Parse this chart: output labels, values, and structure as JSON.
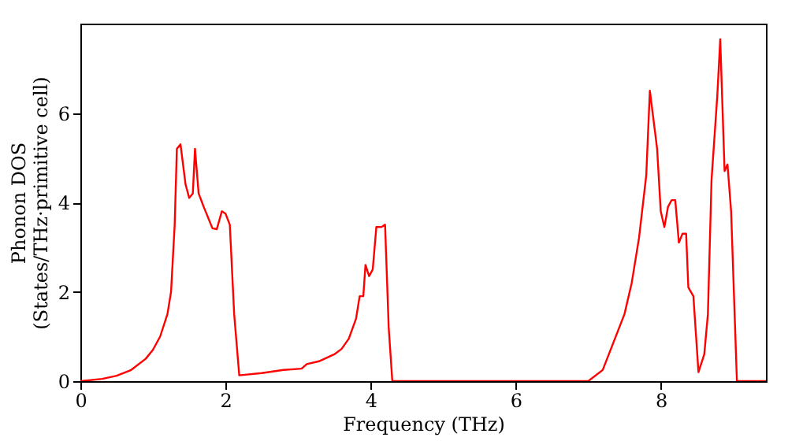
{
  "chart_data": {
    "type": "line",
    "xlabel": "Frequency (THz)",
    "ylabel": "Phonon DOS\n(States/THz·primitive cell)",
    "xlim": [
      0,
      9.45
    ],
    "ylim": [
      0,
      8
    ],
    "xticks": [
      0,
      2,
      4,
      6,
      8
    ],
    "yticks": [
      0,
      2,
      4,
      6
    ],
    "grid": false,
    "marker": "none",
    "line_style": "solid",
    "series": [
      {
        "color": "#ff0000",
        "x": [
          0,
          0.3,
          0.5,
          0.7,
          0.9,
          1.0,
          1.1,
          1.2,
          1.25,
          1.3,
          1.33,
          1.38,
          1.45,
          1.5,
          1.55,
          1.58,
          1.63,
          1.7,
          1.82,
          1.88,
          1.95,
          2.0,
          2.06,
          2.12,
          2.19,
          2.5,
          2.8,
          3.05,
          3.12,
          3.3,
          3.5,
          3.6,
          3.7,
          3.8,
          3.85,
          3.9,
          3.93,
          3.98,
          4.03,
          4.08,
          4.15,
          4.2,
          4.25,
          4.3,
          7.0,
          7.2,
          7.5,
          7.6,
          7.7,
          7.8,
          7.85,
          7.95,
          8.0,
          8.05,
          8.1,
          8.15,
          8.2,
          8.25,
          8.3,
          8.35,
          8.38,
          8.45,
          8.52,
          8.6,
          8.65,
          8.7,
          8.78,
          8.82,
          8.88,
          8.92,
          8.97,
          9.05,
          9.45
        ],
        "values": [
          0,
          0.05,
          0.12,
          0.25,
          0.5,
          0.7,
          1.0,
          1.5,
          2.0,
          3.5,
          5.2,
          5.3,
          4.4,
          4.1,
          4.2,
          5.2,
          4.2,
          3.9,
          3.42,
          3.4,
          3.8,
          3.75,
          3.5,
          1.5,
          0.13,
          0.18,
          0.25,
          0.28,
          0.38,
          0.45,
          0.6,
          0.72,
          0.95,
          1.4,
          1.9,
          1.9,
          2.6,
          2.35,
          2.5,
          3.45,
          3.45,
          3.5,
          1.2,
          0,
          0,
          0.25,
          1.5,
          2.2,
          3.2,
          4.6,
          6.5,
          5.2,
          3.8,
          3.45,
          3.9,
          4.05,
          4.05,
          3.1,
          3.3,
          3.3,
          2.1,
          1.9,
          0.2,
          0.6,
          1.5,
          4.5,
          6.4,
          7.65,
          4.7,
          4.85,
          3.8,
          0,
          0
        ]
      }
    ]
  }
}
